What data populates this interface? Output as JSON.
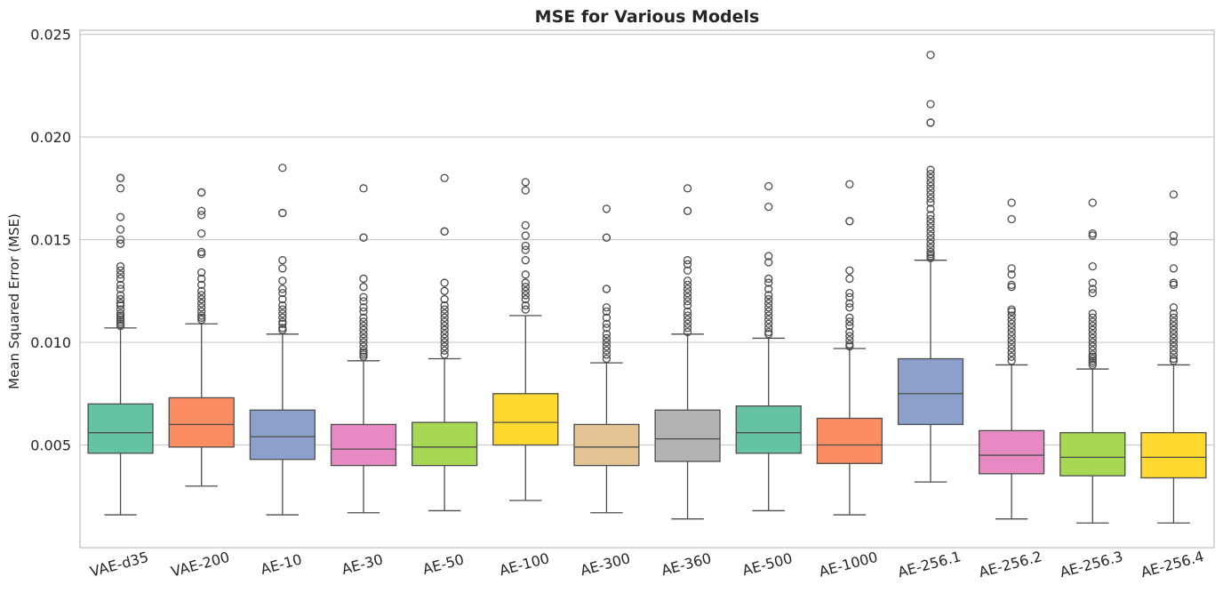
{
  "chart_data": {
    "type": "boxplot",
    "title": "MSE for Various Models",
    "xlabel": "",
    "ylabel": "Mean Squared Error (MSE)",
    "ylim": [
      0.0,
      0.0252
    ],
    "yticks": [
      "0.005",
      "0.010",
      "0.015",
      "0.020",
      "0.025"
    ],
    "ytick_values": [
      0.005,
      0.01,
      0.015,
      0.02,
      0.025
    ],
    "grid": "horizontal",
    "categories": [
      "VAE-d35",
      "VAE-200",
      "AE-10",
      "AE-30",
      "AE-50",
      "AE-100",
      "AE-300",
      "AE-360",
      "AE-500",
      "AE-1000",
      "AE-256.1",
      "AE-256.2",
      "AE-256.3",
      "AE-256.4"
    ],
    "colors": [
      "#66c2a5",
      "#fc8d62",
      "#8da0cb",
      "#e78ac3",
      "#a6d854",
      "#ffd92f",
      "#e5c494",
      "#b3b3b3",
      "#66c2a5",
      "#fc8d62",
      "#8da0cb",
      "#e78ac3",
      "#a6d854",
      "#ffd92f"
    ],
    "boxes": [
      {
        "min": 0.0016,
        "q1": 0.0046,
        "median": 0.0056,
        "q3": 0.007,
        "max": 0.0107,
        "outliers": [
          0.0108,
          0.0109,
          0.011,
          0.0111,
          0.0112,
          0.0113,
          0.0114,
          0.0116,
          0.0118,
          0.0119,
          0.0121,
          0.0123,
          0.0126,
          0.0128,
          0.0131,
          0.0133,
          0.0135,
          0.0137,
          0.0148,
          0.015,
          0.0155,
          0.0161,
          0.0175,
          0.018,
          0.018
        ]
      },
      {
        "min": 0.003,
        "q1": 0.0049,
        "median": 0.006,
        "q3": 0.0073,
        "max": 0.0109,
        "outliers": [
          0.0111,
          0.0112,
          0.0113,
          0.0115,
          0.0117,
          0.0119,
          0.0121,
          0.0123,
          0.0125,
          0.0128,
          0.0131,
          0.0134,
          0.0143,
          0.0144,
          0.0153,
          0.0162,
          0.0164,
          0.0173,
          0.0173
        ]
      },
      {
        "min": 0.0016,
        "q1": 0.0043,
        "median": 0.0054,
        "q3": 0.0067,
        "max": 0.0104,
        "outliers": [
          0.0106,
          0.0107,
          0.0109,
          0.011,
          0.0112,
          0.0114,
          0.0116,
          0.0118,
          0.0121,
          0.0124,
          0.0126,
          0.013,
          0.0136,
          0.014,
          0.0163,
          0.0163,
          0.0185
        ]
      },
      {
        "min": 0.0017,
        "q1": 0.004,
        "median": 0.0048,
        "q3": 0.006,
        "max": 0.0091,
        "outliers": [
          0.0093,
          0.0094,
          0.0095,
          0.0096,
          0.0098,
          0.01,
          0.0102,
          0.0104,
          0.0106,
          0.0108,
          0.011,
          0.0112,
          0.0115,
          0.0117,
          0.012,
          0.0122,
          0.0127,
          0.0131,
          0.0151,
          0.0151,
          0.0175
        ]
      },
      {
        "min": 0.0018,
        "q1": 0.004,
        "median": 0.0049,
        "q3": 0.0061,
        "max": 0.0092,
        "outliers": [
          0.0094,
          0.0096,
          0.0098,
          0.01,
          0.0102,
          0.0104,
          0.0106,
          0.0108,
          0.011,
          0.0112,
          0.0114,
          0.0116,
          0.0118,
          0.0121,
          0.0125,
          0.0129,
          0.0154,
          0.0154,
          0.018
        ]
      },
      {
        "min": 0.0023,
        "q1": 0.005,
        "median": 0.0061,
        "q3": 0.0075,
        "max": 0.0113,
        "outliers": [
          0.0116,
          0.0118,
          0.0121,
          0.0123,
          0.0125,
          0.0127,
          0.0129,
          0.0133,
          0.014,
          0.0145,
          0.0147,
          0.0152,
          0.0157,
          0.0174,
          0.0178
        ]
      },
      {
        "min": 0.0017,
        "q1": 0.004,
        "median": 0.0049,
        "q3": 0.006,
        "max": 0.009,
        "outliers": [
          0.0092,
          0.0094,
          0.0096,
          0.0098,
          0.01,
          0.0102,
          0.0104,
          0.0107,
          0.0109,
          0.0112,
          0.0115,
          0.0117,
          0.0126,
          0.0126,
          0.0151,
          0.0151,
          0.0165
        ]
      },
      {
        "min": 0.0014,
        "q1": 0.0042,
        "median": 0.0053,
        "q3": 0.0067,
        "max": 0.0104,
        "outliers": [
          0.0105,
          0.0107,
          0.0109,
          0.0111,
          0.0113,
          0.0115,
          0.0118,
          0.012,
          0.0122,
          0.0124,
          0.0126,
          0.0128,
          0.013,
          0.0135,
          0.0138,
          0.014,
          0.0164,
          0.0164,
          0.0175
        ]
      },
      {
        "min": 0.0018,
        "q1": 0.0046,
        "median": 0.0056,
        "q3": 0.0069,
        "max": 0.0102,
        "outliers": [
          0.0104,
          0.0105,
          0.0107,
          0.0109,
          0.0111,
          0.0113,
          0.0115,
          0.0117,
          0.0119,
          0.0121,
          0.0123,
          0.0126,
          0.0129,
          0.0131,
          0.0139,
          0.0142,
          0.0166,
          0.0176
        ]
      },
      {
        "min": 0.0016,
        "q1": 0.0041,
        "median": 0.005,
        "q3": 0.0063,
        "max": 0.0097,
        "outliers": [
          0.0098,
          0.0099,
          0.0101,
          0.0103,
          0.0105,
          0.0108,
          0.011,
          0.0112,
          0.0117,
          0.0119,
          0.0122,
          0.0124,
          0.0131,
          0.0135,
          0.0159,
          0.0159,
          0.0177
        ]
      },
      {
        "min": 0.0032,
        "q1": 0.006,
        "median": 0.0075,
        "q3": 0.0092,
        "max": 0.014,
        "outliers": [
          0.0141,
          0.0142,
          0.0143,
          0.0144,
          0.0146,
          0.0148,
          0.015,
          0.0152,
          0.0154,
          0.0156,
          0.0158,
          0.016,
          0.0162,
          0.0165,
          0.0168,
          0.017,
          0.0172,
          0.0174,
          0.0176,
          0.0178,
          0.018,
          0.0182,
          0.0184,
          0.0207,
          0.0207,
          0.0216,
          0.024
        ]
      },
      {
        "min": 0.0014,
        "q1": 0.0036,
        "median": 0.0045,
        "q3": 0.0057,
        "max": 0.0089,
        "outliers": [
          0.0091,
          0.0093,
          0.0095,
          0.0097,
          0.0099,
          0.0101,
          0.0103,
          0.0105,
          0.0107,
          0.0109,
          0.0111,
          0.0113,
          0.0115,
          0.0116,
          0.0127,
          0.0128,
          0.0133,
          0.0136,
          0.016,
          0.0168
        ]
      },
      {
        "min": 0.0012,
        "q1": 0.0035,
        "median": 0.0044,
        "q3": 0.0056,
        "max": 0.0087,
        "outliers": [
          0.0089,
          0.009,
          0.0091,
          0.0092,
          0.0093,
          0.0094,
          0.0096,
          0.0098,
          0.01,
          0.0102,
          0.0104,
          0.0106,
          0.0108,
          0.011,
          0.0112,
          0.0114,
          0.0124,
          0.0126,
          0.0129,
          0.0137,
          0.0152,
          0.0153,
          0.0168
        ]
      },
      {
        "min": 0.0012,
        "q1": 0.0034,
        "median": 0.0044,
        "q3": 0.0056,
        "max": 0.0089,
        "outliers": [
          0.0091,
          0.0092,
          0.0094,
          0.0096,
          0.0098,
          0.01,
          0.0102,
          0.0104,
          0.0106,
          0.0108,
          0.011,
          0.0112,
          0.0114,
          0.0117,
          0.0128,
          0.0129,
          0.0136,
          0.0149,
          0.0152,
          0.0172
        ]
      }
    ]
  }
}
